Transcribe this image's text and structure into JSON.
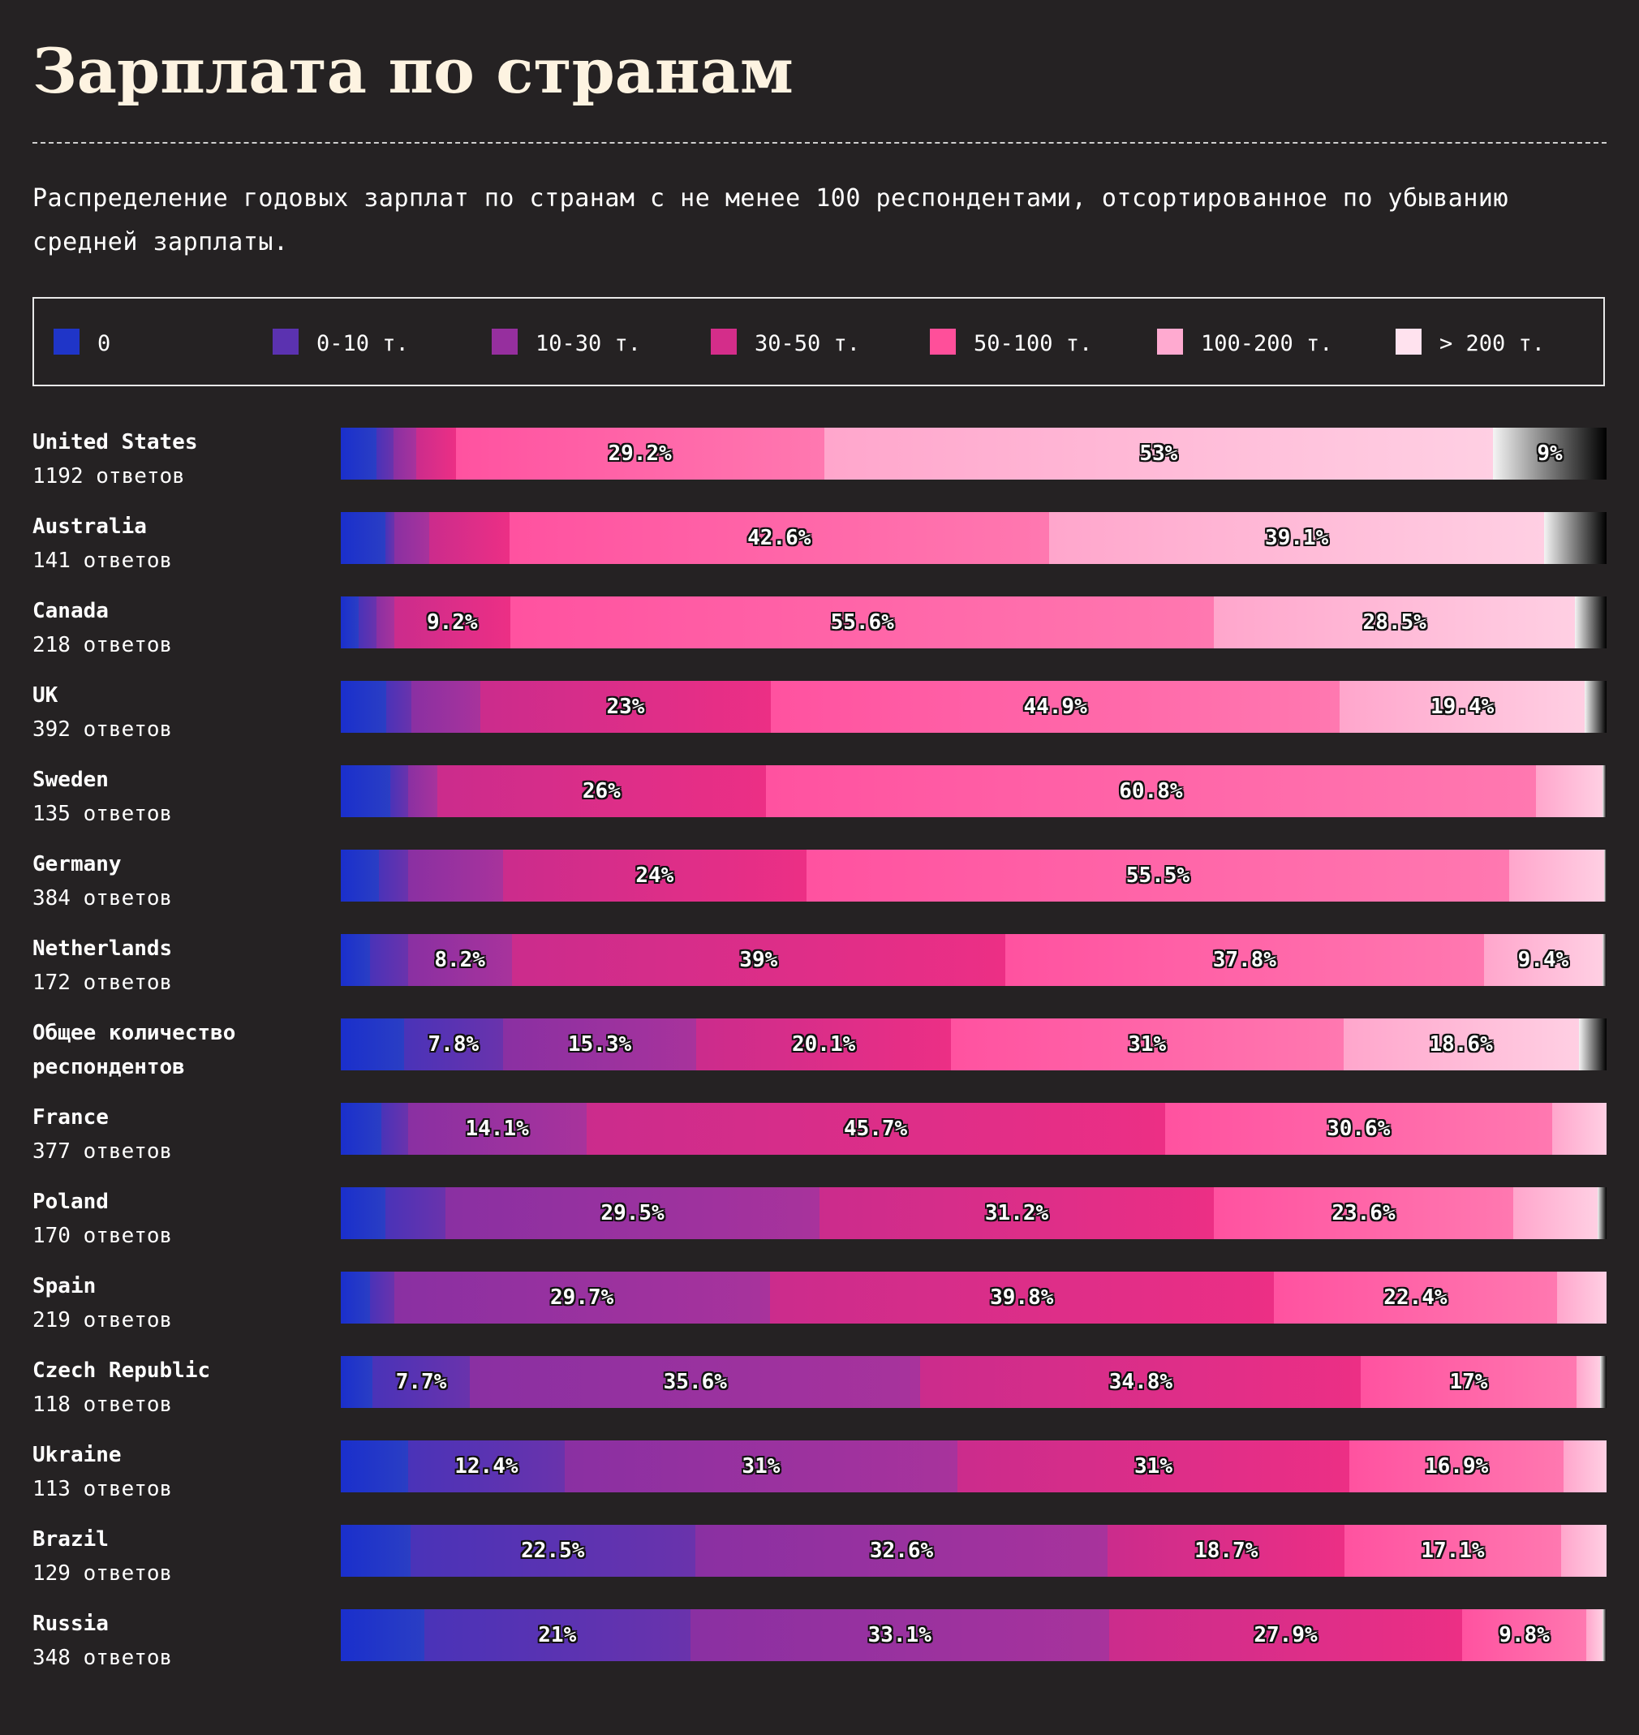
{
  "title": "Зарплата по странам",
  "subtitle": "Распределение годовых зарплат по странам с не менее 100 респондентами, отсортированное по убыванию средней зарплаты.",
  "legend": [
    {
      "label": "0",
      "color": "#1f35c8"
    },
    {
      "label": "0-10 т.",
      "color": "#5b32b0"
    },
    {
      "label": "10-30 т.",
      "color": "#962f9e"
    },
    {
      "label": "30-50 т.",
      "color": "#d42d8a"
    },
    {
      "label": "50-100 т.",
      "color": "#ff4f9a"
    },
    {
      "label": "100-200 т.",
      "color": "#ffaad0"
    },
    {
      "label": "> 200 т.",
      "color": "#ffe2ee"
    }
  ],
  "chart_data": {
    "type": "bar",
    "orientation": "horizontal",
    "stacked": "100%",
    "categories": [
      "0",
      "0-10 т.",
      "10-30 т.",
      "30-50 т.",
      "50-100 т.",
      "100-200 т.",
      "> 200 т."
    ],
    "rows": [
      {
        "name": "United States",
        "count": "1192 ответов",
        "values": [
          2.8,
          1.4,
          1.8,
          3.1,
          29.2,
          53,
          9
        ]
      },
      {
        "name": "Australia",
        "count": "141 ответов",
        "values": [
          3.5,
          0.7,
          2.8,
          6.3,
          42.6,
          39.1,
          4.9
        ]
      },
      {
        "name": "Canada",
        "count": "218 ответов",
        "values": [
          1.4,
          1.4,
          1.4,
          9.2,
          55.6,
          28.5,
          2.5
        ]
      },
      {
        "name": "UK",
        "count": "392 ответов",
        "values": [
          3.6,
          2.0,
          5.4,
          23,
          44.9,
          19.4,
          1.7
        ]
      },
      {
        "name": "Sweden",
        "count": "135 ответов",
        "values": [
          3.9,
          1.4,
          2.3,
          26,
          60.8,
          5.3,
          0.3
        ]
      },
      {
        "name": "Germany",
        "count": "384 ответов",
        "values": [
          3.0,
          2.3,
          7.5,
          24,
          55.5,
          7.5,
          0.2
        ]
      },
      {
        "name": "Netherlands",
        "count": "172 ответов",
        "values": [
          2.3,
          3.0,
          8.2,
          39,
          37.8,
          9.4,
          0.3
        ]
      },
      {
        "name": "Общее количество респондентов",
        "count": "",
        "values": [
          5.0,
          7.8,
          15.3,
          20.1,
          31,
          18.6,
          2.2
        ]
      },
      {
        "name": "France",
        "count": "377 ответов",
        "values": [
          3.2,
          2.1,
          14.1,
          45.7,
          30.6,
          4.3,
          0
        ]
      },
      {
        "name": "Poland",
        "count": "170 ответов",
        "values": [
          3.5,
          4.8,
          29.5,
          31.2,
          23.6,
          6.7,
          0.7
        ]
      },
      {
        "name": "Spain",
        "count": "219 ответов",
        "values": [
          2.3,
          1.9,
          29.7,
          39.8,
          22.4,
          3.9,
          0
        ]
      },
      {
        "name": "Czech Republic",
        "count": "118 ответов",
        "values": [
          2.5,
          7.7,
          35.6,
          34.8,
          17,
          1.9,
          0.5
        ]
      },
      {
        "name": "Ukraine",
        "count": "113 ответов",
        "values": [
          5.3,
          12.4,
          31,
          31,
          16.9,
          3.4,
          0
        ]
      },
      {
        "name": "Brazil",
        "count": "129 ответов",
        "values": [
          5.5,
          22.5,
          32.6,
          18.7,
          17.1,
          3.6,
          0
        ]
      },
      {
        "name": "Russia",
        "count": "348 ответов",
        "values": [
          6.6,
          21,
          33.1,
          27.9,
          9.8,
          1.3,
          0.3
        ]
      }
    ],
    "labeled_segments": [
      [
        4,
        5,
        6
      ],
      [
        4,
        5
      ],
      [
        3,
        4,
        5
      ],
      [
        3,
        4,
        5
      ],
      [
        3,
        4
      ],
      [
        3,
        4
      ],
      [
        2,
        3,
        4,
        5
      ],
      [
        1,
        2,
        3,
        4,
        5
      ],
      [
        2,
        3,
        4
      ],
      [
        2,
        3,
        4
      ],
      [
        2,
        3,
        4
      ],
      [
        1,
        2,
        3,
        4
      ],
      [
        1,
        2,
        3,
        4
      ],
      [
        1,
        2,
        3,
        4
      ],
      [
        1,
        2,
        3,
        4
      ]
    ],
    "colors": {
      "0": [
        "#1a2fcc",
        "#2a3ec4"
      ],
      "0-10 т.": [
        "#4a33b8",
        "#6a33ac"
      ],
      "10-30 т.": [
        "#8a30a2",
        "#a8339c"
      ],
      "30-50 т.": [
        "#cb2c8c",
        "#ec2f85"
      ],
      "50-100 т.": [
        "#ff52a0",
        "#ff78b0"
      ],
      "100-200 т.": [
        "#ffa6cc",
        "#ffcfe3"
      ],
      "> 200 т.": [
        "#f4f4f4",
        "#000000"
      ]
    }
  }
}
